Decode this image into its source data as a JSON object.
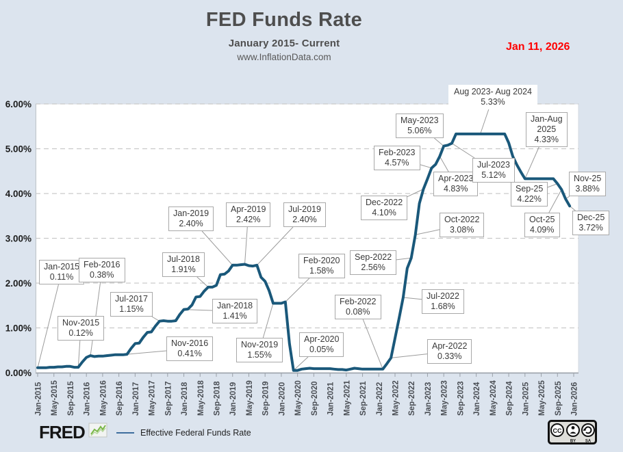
{
  "header": {
    "title": "FED Funds Rate",
    "subtitle": "January 2015- Current",
    "site": "www.InflationData.com",
    "as_of_date": "Jan 11, 2026"
  },
  "colors": {
    "line": "#1a587a",
    "date": "#ff0000",
    "background": "#dce4ee",
    "gridline": "#c9c9c9",
    "axis": "#9aa0a8"
  },
  "chart_data": {
    "type": "line",
    "series_name": "Effective Federal Funds Rate",
    "start_month": "Jan-2015",
    "end_month": "Dec-2025",
    "values": [
      0.11,
      0.11,
      0.11,
      0.12,
      0.12,
      0.13,
      0.13,
      0.14,
      0.14,
      0.12,
      0.12,
      0.24,
      0.34,
      0.38,
      0.36,
      0.37,
      0.37,
      0.38,
      0.39,
      0.4,
      0.4,
      0.4,
      0.41,
      0.54,
      0.65,
      0.66,
      0.79,
      0.9,
      0.91,
      1.04,
      1.15,
      1.16,
      1.15,
      1.15,
      1.16,
      1.3,
      1.41,
      1.42,
      1.51,
      1.69,
      1.7,
      1.82,
      1.91,
      1.91,
      1.95,
      2.19,
      2.2,
      2.27,
      2.4,
      2.4,
      2.41,
      2.42,
      2.39,
      2.38,
      2.4,
      2.13,
      2.04,
      1.83,
      1.55,
      1.55,
      1.55,
      1.58,
      0.65,
      0.05,
      0.05,
      0.08,
      0.09,
      0.1,
      0.09,
      0.09,
      0.09,
      0.09,
      0.09,
      0.08,
      0.07,
      0.07,
      0.06,
      0.08,
      0.1,
      0.09,
      0.08,
      0.08,
      0.08,
      0.08,
      0.08,
      0.08,
      0.2,
      0.33,
      0.77,
      1.21,
      1.68,
      2.33,
      2.56,
      3.08,
      3.78,
      4.1,
      4.33,
      4.57,
      4.65,
      4.83,
      5.06,
      5.08,
      5.12,
      5.33,
      5.33,
      5.33,
      5.33,
      5.33,
      5.33,
      5.33,
      5.33,
      5.33,
      5.33,
      5.33,
      5.33,
      5.33,
      5.13,
      4.83,
      4.64,
      4.48,
      4.33,
      4.33,
      4.33,
      4.33,
      4.33,
      4.33,
      4.33,
      4.33,
      4.22,
      4.09,
      3.88,
      3.72
    ],
    "x_tick_labels": [
      "Jan-2015",
      "May-2015",
      "Sep-2015",
      "Jan-2016",
      "May-2016",
      "Sep-2016",
      "Jan-2017",
      "May-2017",
      "Sep-2017",
      "Jan-2018",
      "May-2018",
      "Sep-2018",
      "Jan-2019",
      "May-2019",
      "Sep-2019",
      "Jan-2020",
      "May-2020",
      "Sep-2020",
      "Jan-2021",
      "May-2021",
      "Sep-2021",
      "Jan-2022",
      "May-2022",
      "Sep-2022",
      "Jan-2023",
      "May-2023",
      "Sep-2023",
      "Jan-2024",
      "May-2024",
      "Sep-2024",
      "Jan-2025",
      "May-2025",
      "Sep-2025",
      "Jan-2026"
    ],
    "y_tick_labels": [
      "0.00%",
      "1.00%",
      "2.00%",
      "3.00%",
      "4.00%",
      "5.00%",
      "6.00%"
    ],
    "ylim": [
      0,
      6
    ],
    "grid": "horizontal-dashed",
    "annotations": [
      {
        "lines": [
          "Jan-2015",
          "0.11%"
        ]
      },
      {
        "lines": [
          "Nov-2015",
          "0.12%"
        ]
      },
      {
        "lines": [
          "Feb-2016",
          "0.38%"
        ]
      },
      {
        "lines": [
          "Nov-2016",
          "0.41%"
        ]
      },
      {
        "lines": [
          "Jul-2017",
          "1.15%"
        ]
      },
      {
        "lines": [
          "Jan-2018",
          "1.41%"
        ]
      },
      {
        "lines": [
          "Jul-2018",
          "1.91%"
        ]
      },
      {
        "lines": [
          "Jan-2019",
          "2.40%"
        ]
      },
      {
        "lines": [
          "Apr-2019",
          "2.42%"
        ]
      },
      {
        "lines": [
          "Jul-2019",
          "2.40%"
        ]
      },
      {
        "lines": [
          "Nov-2019",
          "1.55%"
        ]
      },
      {
        "lines": [
          "Feb-2020",
          "1.58%"
        ]
      },
      {
        "lines": [
          "Apr-2020",
          "0.05%"
        ]
      },
      {
        "lines": [
          "Feb-2022",
          "0.08%"
        ]
      },
      {
        "lines": [
          "Apr-2022",
          "0.33%"
        ]
      },
      {
        "lines": [
          "Jul-2022",
          "1.68%"
        ]
      },
      {
        "lines": [
          "Sep-2022",
          "2.56%"
        ]
      },
      {
        "lines": [
          "Oct-2022",
          "3.08%"
        ]
      },
      {
        "lines": [
          "Dec-2022",
          "4.10%"
        ]
      },
      {
        "lines": [
          "Feb-2023",
          "4.57%"
        ]
      },
      {
        "lines": [
          "Apr-2023",
          "4.83%"
        ]
      },
      {
        "lines": [
          "May-2023",
          "5.06%"
        ]
      },
      {
        "lines": [
          "Jul-2023",
          "5.12%"
        ]
      },
      {
        "lines": [
          "Aug 2023- Aug 2024",
          "5.33%"
        ]
      },
      {
        "lines": [
          "Jan-Aug",
          "2025",
          "4.33%"
        ]
      },
      {
        "lines": [
          "Sep-25",
          "4.22%"
        ]
      },
      {
        "lines": [
          "Oct-25",
          "4.09%"
        ]
      },
      {
        "lines": [
          "Nov-25",
          "3.88%"
        ]
      },
      {
        "lines": [
          "Dec-25",
          "3.72%"
        ]
      }
    ]
  },
  "footer": {
    "fred": "FRED",
    "legend_label": "Effective Federal Funds Rate",
    "cc": {
      "badge": "CC",
      "by": "BY",
      "sa": "SA"
    }
  }
}
